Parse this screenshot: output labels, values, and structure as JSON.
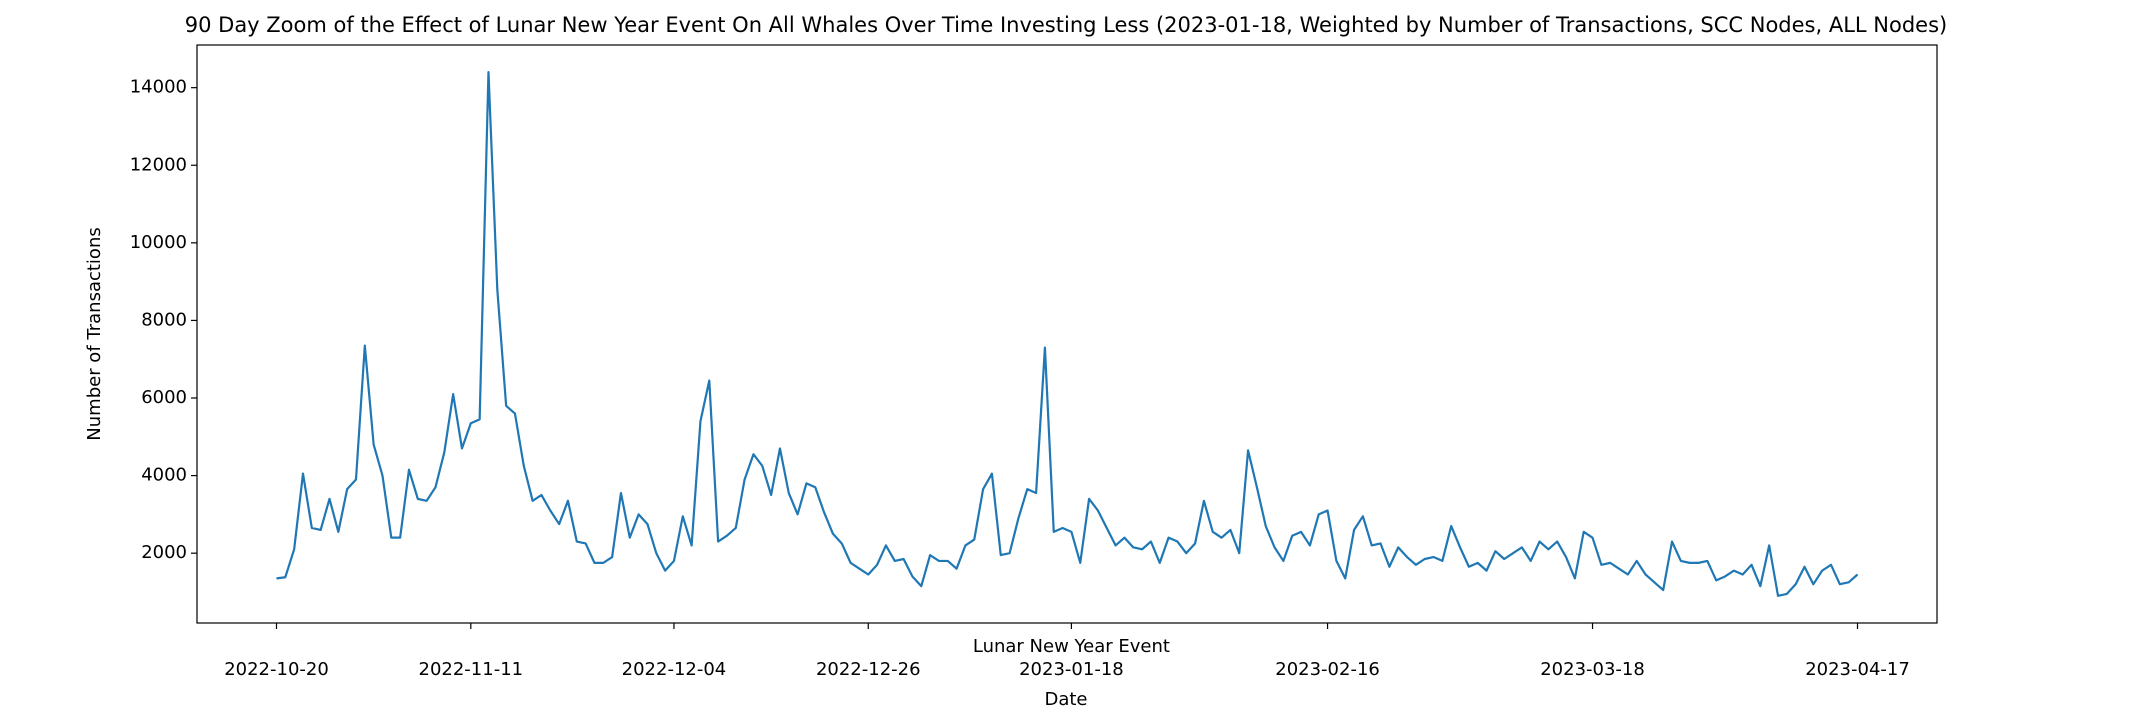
{
  "chart_data": {
    "type": "line",
    "title": "90 Day Zoom of the Effect of Lunar New Year Event On All Whales Over Time Investing Less (2023-01-18, Weighted by Number of Transactions, SCC Nodes, ALL Nodes)",
    "x_label": "Date",
    "y_label": "Number of Transactions",
    "annotation": {
      "text": "Lunar New Year Event",
      "x": "2023-01-18"
    },
    "x": [
      "2022-10-20",
      "2022-10-21",
      "2022-10-22",
      "2022-10-23",
      "2022-10-24",
      "2022-10-25",
      "2022-10-26",
      "2022-10-27",
      "2022-10-28",
      "2022-10-29",
      "2022-10-30",
      "2022-10-31",
      "2022-11-01",
      "2022-11-02",
      "2022-11-03",
      "2022-11-04",
      "2022-11-05",
      "2022-11-06",
      "2022-11-07",
      "2022-11-08",
      "2022-11-09",
      "2022-11-10",
      "2022-11-11",
      "2022-11-12",
      "2022-11-13",
      "2022-11-14",
      "2022-11-15",
      "2022-11-16",
      "2022-11-17",
      "2022-11-18",
      "2022-11-19",
      "2022-11-20",
      "2022-11-21",
      "2022-11-22",
      "2022-11-23",
      "2022-11-24",
      "2022-11-25",
      "2022-11-26",
      "2022-11-27",
      "2022-11-28",
      "2022-11-29",
      "2022-11-30",
      "2022-12-01",
      "2022-12-02",
      "2022-12-03",
      "2022-12-04",
      "2022-12-05",
      "2022-12-06",
      "2022-12-07",
      "2022-12-08",
      "2022-12-09",
      "2022-12-10",
      "2022-12-11",
      "2022-12-12",
      "2022-12-13",
      "2022-12-14",
      "2022-12-15",
      "2022-12-16",
      "2022-12-17",
      "2022-12-18",
      "2022-12-19",
      "2022-12-20",
      "2022-12-21",
      "2022-12-22",
      "2022-12-23",
      "2022-12-24",
      "2022-12-25",
      "2022-12-26",
      "2022-12-27",
      "2022-12-28",
      "2022-12-29",
      "2022-12-30",
      "2022-12-31",
      "2023-01-01",
      "2023-01-02",
      "2023-01-03",
      "2023-01-04",
      "2023-01-05",
      "2023-01-06",
      "2023-01-07",
      "2023-01-08",
      "2023-01-09",
      "2023-01-10",
      "2023-01-11",
      "2023-01-12",
      "2023-01-13",
      "2023-01-14",
      "2023-01-15",
      "2023-01-16",
      "2023-01-17",
      "2023-01-18",
      "2023-01-19",
      "2023-01-20",
      "2023-01-21",
      "2023-01-22",
      "2023-01-23",
      "2023-01-24",
      "2023-01-25",
      "2023-01-26",
      "2023-01-27",
      "2023-01-28",
      "2023-01-29",
      "2023-01-30",
      "2023-01-31",
      "2023-02-01",
      "2023-02-02",
      "2023-02-03",
      "2023-02-04",
      "2023-02-05",
      "2023-02-06",
      "2023-02-07",
      "2023-02-08",
      "2023-02-09",
      "2023-02-10",
      "2023-02-11",
      "2023-02-12",
      "2023-02-13",
      "2023-02-14",
      "2023-02-15",
      "2023-02-16",
      "2023-02-17",
      "2023-02-18",
      "2023-02-19",
      "2023-02-20",
      "2023-02-21",
      "2023-02-22",
      "2023-02-23",
      "2023-02-24",
      "2023-02-25",
      "2023-02-26",
      "2023-02-27",
      "2023-02-28",
      "2023-03-01",
      "2023-03-02",
      "2023-03-03",
      "2023-03-04",
      "2023-03-05",
      "2023-03-06",
      "2023-03-07",
      "2023-03-08",
      "2023-03-09",
      "2023-03-10",
      "2023-03-11",
      "2023-03-12",
      "2023-03-13",
      "2023-03-14",
      "2023-03-15",
      "2023-03-16",
      "2023-03-17",
      "2023-03-18",
      "2023-03-19",
      "2023-03-20",
      "2023-03-21",
      "2023-03-22",
      "2023-03-23",
      "2023-03-24",
      "2023-03-25",
      "2023-03-26",
      "2023-03-27",
      "2023-03-28",
      "2023-03-29",
      "2023-03-30",
      "2023-03-31",
      "2023-04-01",
      "2023-04-02",
      "2023-04-03",
      "2023-04-04",
      "2023-04-05",
      "2023-04-06",
      "2023-04-07",
      "2023-04-08",
      "2023-04-09",
      "2023-04-10",
      "2023-04-11",
      "2023-04-12",
      "2023-04-13",
      "2023-04-14",
      "2023-04-15",
      "2023-04-16",
      "2023-04-17"
    ],
    "series": [
      {
        "name": "Number of Transactions",
        "color": "#1f77b4",
        "values": [
          1350,
          1380,
          2100,
          4050,
          2650,
          2600,
          3400,
          2550,
          3650,
          3900,
          7350,
          4800,
          4000,
          2400,
          2400,
          4150,
          3400,
          3350,
          3700,
          4600,
          6100,
          4700,
          5350,
          5450,
          14400,
          8800,
          5800,
          5600,
          4250,
          3350,
          3500,
          3100,
          2750,
          3350,
          2300,
          2250,
          1750,
          1750,
          1900,
          3550,
          2400,
          3000,
          2750,
          2000,
          1550,
          1800,
          2950,
          2200,
          5400,
          6450,
          2300,
          2450,
          2650,
          3900,
          4550,
          4250,
          3500,
          4700,
          3550,
          3000,
          3800,
          3700,
          3050,
          2500,
          2250,
          1750,
          1600,
          1450,
          1700,
          2200,
          1800,
          1850,
          1400,
          1150,
          1950,
          1800,
          1800,
          1600,
          2200,
          2350,
          3650,
          4050,
          1950,
          2000,
          2900,
          3650,
          3550,
          7300,
          2550,
          2650,
          2550,
          1750,
          3400,
          3100,
          2650,
          2200,
          2400,
          2150,
          2100,
          2300,
          1750,
          2400,
          2300,
          2000,
          2250,
          3350,
          2550,
          2400,
          2600,
          2000,
          4650,
          3700,
          2700,
          2150,
          1800,
          2450,
          2550,
          2200,
          3000,
          3100,
          1800,
          1350,
          2600,
          2950,
          2200,
          2250,
          1650,
          2150,
          1900,
          1700,
          1850,
          1900,
          1800,
          2700,
          2150,
          1650,
          1750,
          1550,
          2050,
          1850,
          2000,
          2150,
          1800,
          2300,
          2100,
          2300,
          1900,
          1350,
          2550,
          2400,
          1700,
          1750,
          1600,
          1450,
          1800,
          1450,
          1250,
          1050,
          2300,
          1800,
          1750,
          1750,
          1800,
          1300,
          1400,
          1550,
          1450,
          1700,
          1150,
          2200,
          900,
          950,
          1200,
          1650,
          1200,
          1550,
          1700,
          1200,
          1250,
          1450
        ]
      }
    ],
    "xlim": [
      "2022-10-11",
      "2023-04-26"
    ],
    "xticks": [
      "2022-10-20",
      "2022-11-11",
      "2022-12-04",
      "2022-12-26",
      "2023-01-18",
      "2023-02-16",
      "2023-03-18",
      "2023-04-17"
    ],
    "ylim": [
      200,
      15100
    ],
    "yticks": [
      2000,
      4000,
      6000,
      8000,
      10000,
      12000,
      14000
    ],
    "grid": false
  }
}
